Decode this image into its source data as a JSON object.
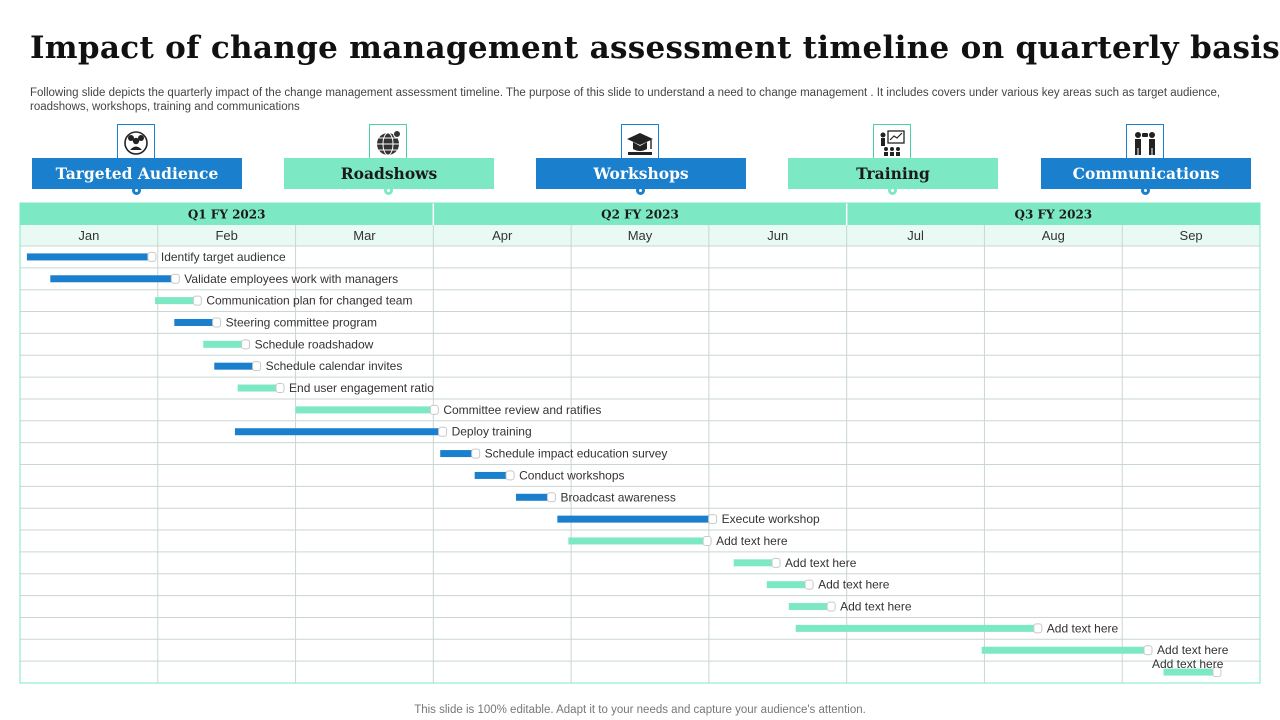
{
  "title": "Impact of change management assessment timeline on quarterly basis",
  "subtitle": "Following slide depicts the quarterly impact of the change management assessment timeline. The purpose of this slide  to understand a need to change management . It includes  covers under various key areas such as target audience, roadshows, workshops, training and communications",
  "footer": "This slide is 100% editable. Adapt it to your needs and capture your audience's attention.",
  "categories": [
    {
      "label": "Targeted Audience",
      "icon": "audience-icon",
      "color": "#1a7fcc"
    },
    {
      "label": "Roadshows",
      "icon": "globe-icon",
      "color": "#7de8c4"
    },
    {
      "label": "Workshops",
      "icon": "graduation-cap-icon",
      "color": "#1a7fcc"
    },
    {
      "label": "Training",
      "icon": "presentation-icon",
      "color": "#7de8c4"
    },
    {
      "label": "Communications",
      "icon": "people-talking-icon",
      "color": "#1a7fcc"
    }
  ],
  "colors": {
    "blue": "#1a7fcc",
    "teal": "#7de8c4",
    "header_fill": "#7de8c4",
    "month_fill": "#e8faf3",
    "grid": "#c9d6d2"
  },
  "chart_data": {
    "type": "gantt",
    "quarters": [
      {
        "label": "Q1 FY 2023",
        "months": 3
      },
      {
        "label": "Q2 FY 2023",
        "months": 3
      },
      {
        "label": "Q3 FY 2023",
        "months": 3
      }
    ],
    "months": [
      "Jan",
      "Feb",
      "Mar",
      "Apr",
      "May",
      "Jun",
      "Jul",
      "Aug",
      "Sep"
    ],
    "tasks": [
      {
        "label": "Identify target audience",
        "start": 0.05,
        "end": 0.95,
        "color": "blue"
      },
      {
        "label": "Validate employees work with managers",
        "start": 0.22,
        "end": 1.12,
        "color": "blue"
      },
      {
        "label": "Communication plan for changed team",
        "start": 0.98,
        "end": 1.28,
        "color": "teal"
      },
      {
        "label": "Steering committee program",
        "start": 1.12,
        "end": 1.42,
        "color": "blue"
      },
      {
        "label": "Schedule roadshadow",
        "start": 1.33,
        "end": 1.63,
        "color": "teal"
      },
      {
        "label": "Schedule calendar invites",
        "start": 1.41,
        "end": 1.71,
        "color": "blue"
      },
      {
        "label": "End user engagement ratio",
        "start": 1.58,
        "end": 1.88,
        "color": "teal"
      },
      {
        "label": "Committee review and ratifies",
        "start": 2.0,
        "end": 3.0,
        "color": "teal"
      },
      {
        "label": "Deploy training",
        "start": 1.56,
        "end": 3.06,
        "color": "blue"
      },
      {
        "label": "Schedule impact education survey",
        "start": 3.05,
        "end": 3.3,
        "color": "blue"
      },
      {
        "label": "Conduct workshops",
        "start": 3.3,
        "end": 3.55,
        "color": "blue"
      },
      {
        "label": "Broadcast awareness",
        "start": 3.6,
        "end": 3.85,
        "color": "blue"
      },
      {
        "label": "Execute workshop",
        "start": 3.9,
        "end": 5.02,
        "color": "blue"
      },
      {
        "label": "Add text here",
        "start": 3.98,
        "end": 4.98,
        "color": "teal"
      },
      {
        "label": "Add text here",
        "start": 5.18,
        "end": 5.48,
        "color": "teal"
      },
      {
        "label": "Add text here",
        "start": 5.42,
        "end": 5.72,
        "color": "teal"
      },
      {
        "label": "Add text here",
        "start": 5.58,
        "end": 5.88,
        "color": "teal"
      },
      {
        "label": "Add text here",
        "start": 5.63,
        "end": 7.38,
        "color": "teal"
      },
      {
        "label": "Add text here",
        "start": 6.98,
        "end": 8.18,
        "color": "teal"
      },
      {
        "label": "Add text here",
        "start": 8.3,
        "end": 8.68,
        "color": "teal"
      }
    ]
  }
}
